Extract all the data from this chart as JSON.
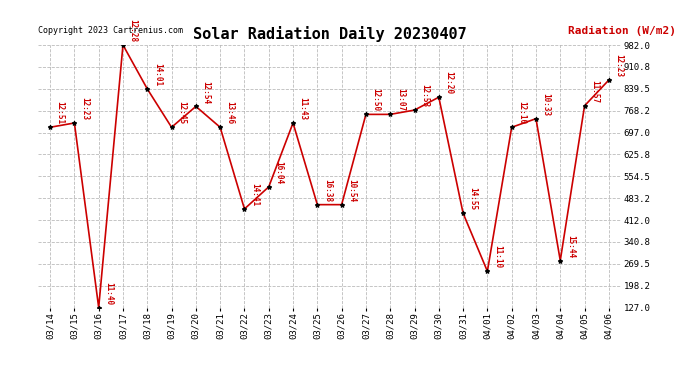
{
  "title": "Solar Radiation Daily 20230407",
  "ylabel": "Radiation (W/m2)",
  "copyright": "Copyright 2023 Cartrenius.com",
  "dates": [
    "03/14",
    "03/15",
    "03/16",
    "03/17",
    "03/18",
    "03/19",
    "03/20",
    "03/21",
    "03/22",
    "03/23",
    "03/24",
    "03/25",
    "03/26",
    "03/27",
    "03/28",
    "03/29",
    "03/30",
    "03/31",
    "04/01",
    "04/02",
    "04/03",
    "04/04",
    "04/05",
    "04/06"
  ],
  "values": [
    714,
    728,
    127,
    982,
    839,
    714,
    782,
    714,
    448,
    520,
    728,
    462,
    462,
    756,
    756,
    770,
    812,
    434,
    245,
    714,
    742,
    280,
    784,
    868
  ],
  "labels": [
    "12:51",
    "12:23",
    "11:40",
    "12:28",
    "14:01",
    "12:45",
    "12:54",
    "13:46",
    "14:41",
    "16:04",
    "11:43",
    "16:38",
    "10:54",
    "12:50",
    "13:07",
    "12:53",
    "12:20",
    "14:55",
    "11:10",
    "12:10",
    "10:33",
    "15:44",
    "11:57",
    "12:23"
  ],
  "line_color": "#cc0000",
  "marker_color": "#000000",
  "label_color": "#cc0000",
  "bg_color": "#ffffff",
  "grid_color": "#aaaaaa",
  "title_color": "#000000",
  "ylabel_color": "#cc0000",
  "copyright_color": "#000000",
  "ylim_min": 127.0,
  "ylim_max": 982.0,
  "yticks": [
    127.0,
    198.2,
    269.5,
    340.8,
    412.0,
    483.2,
    554.5,
    625.8,
    697.0,
    768.2,
    839.5,
    910.8,
    982.0
  ]
}
